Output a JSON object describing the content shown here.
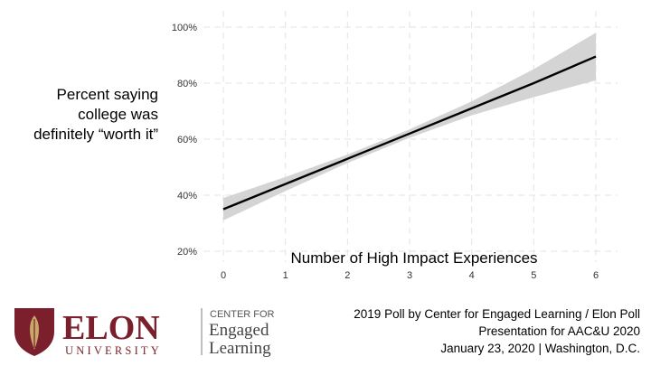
{
  "chart_data": {
    "type": "line",
    "ylabel": "Percent saying college was definitely “worth it”",
    "xlabel": "Number of High Impact Experiences",
    "x_ticks": [
      "0",
      "1",
      "2",
      "3",
      "4",
      "5",
      "6"
    ],
    "y_ticks": [
      "20%",
      "40%",
      "60%",
      "80%",
      "100%"
    ],
    "xlim": [
      0,
      6
    ],
    "ylim": [
      0.2,
      1.0
    ],
    "grid": true,
    "series": [
      {
        "x": [
          0,
          1,
          2,
          3,
          4,
          5,
          6
        ],
        "y": [
          0.35,
          0.44,
          0.53,
          0.62,
          0.71,
          0.8,
          0.895
        ],
        "ci_lower": [
          0.31,
          0.415,
          0.515,
          0.605,
          0.685,
          0.75,
          0.81
        ],
        "ci_upper": [
          0.39,
          0.465,
          0.545,
          0.635,
          0.735,
          0.85,
          0.98
        ]
      }
    ]
  },
  "colors": {
    "line": "#000000",
    "ci_band": "#d4d4d4",
    "grid": "#e3e3e3",
    "brand_maroon": "#7a1f2b",
    "brand_gold": "#c8a96a"
  },
  "ylabel_lines": [
    "Percent saying",
    "college was",
    "definitely “worth it”"
  ],
  "logo": {
    "name": "ELON",
    "university": "UNIVERSITY",
    "center_lines": [
      "CENTER FOR",
      "Engaged",
      "Learning"
    ]
  },
  "footer": {
    "line1": "2019 Poll by Center for Engaged Learning / Elon Poll",
    "line2": "Presentation for AAC&U 2020",
    "line3": "January 23, 2020 | Washington, D.C."
  }
}
